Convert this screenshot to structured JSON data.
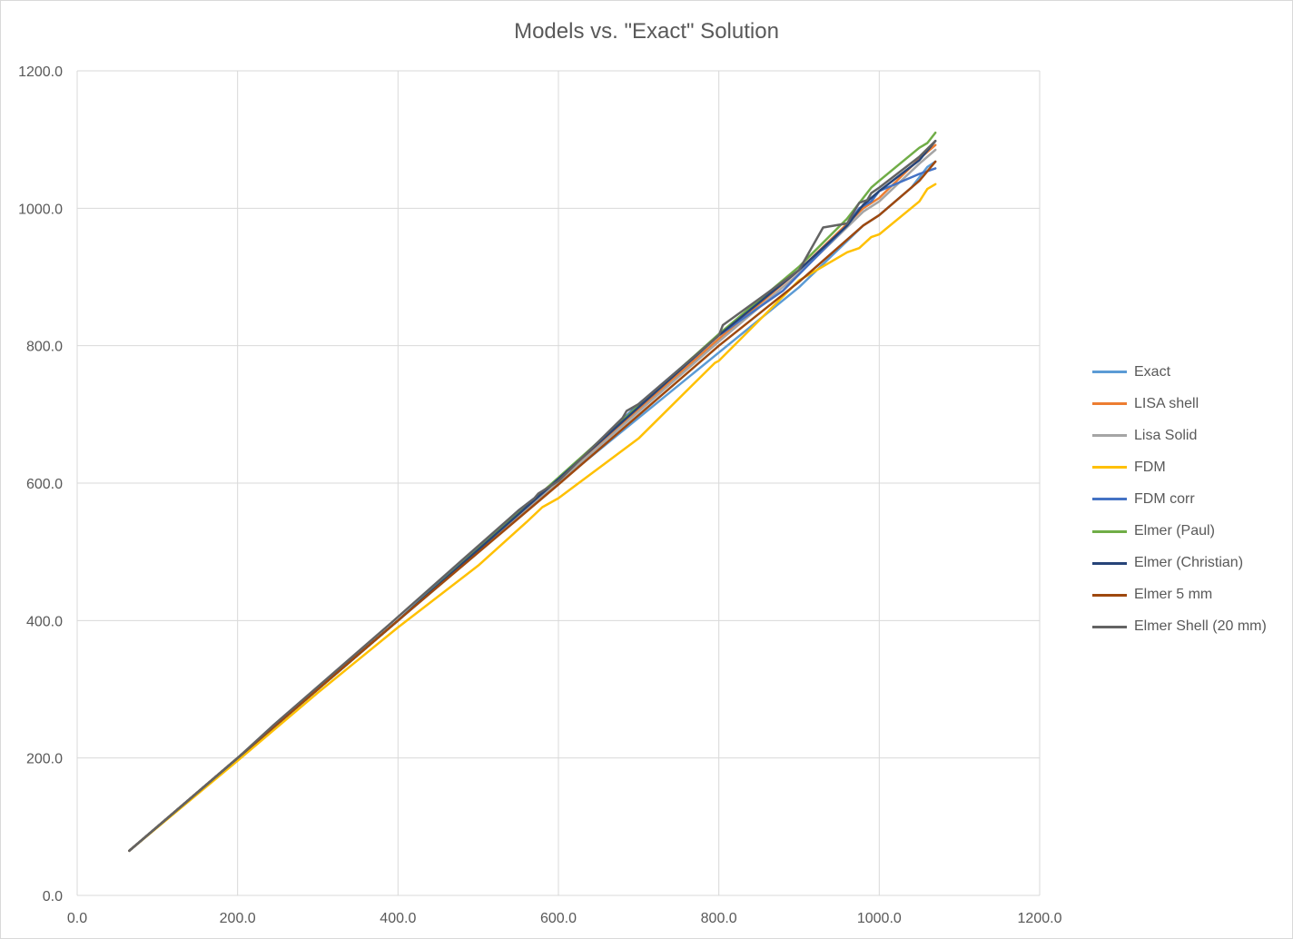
{
  "chart_data": {
    "type": "line",
    "title": "Models vs. \"Exact\" Solution",
    "xlabel": "",
    "ylabel": "",
    "xlim": [
      0,
      1200
    ],
    "ylim": [
      0,
      1200
    ],
    "x_ticks": [
      "0.0",
      "200.0",
      "400.0",
      "600.0",
      "800.0",
      "1000.0",
      "1200.0"
    ],
    "y_ticks": [
      "0.0",
      "200.0",
      "400.0",
      "600.0",
      "800.0",
      "1000.0",
      "1200.0"
    ],
    "grid": true,
    "legend_position": "right",
    "series": [
      {
        "name": "Exact",
        "color": "#5B9BD5",
        "points": [
          [
            65,
            65
          ],
          [
            200,
            200
          ],
          [
            400,
            400
          ],
          [
            600,
            600
          ],
          [
            800,
            790
          ],
          [
            900,
            885
          ],
          [
            980,
            975
          ],
          [
            1000,
            990
          ],
          [
            1040,
            1030
          ],
          [
            1060,
            1060
          ],
          [
            1070,
            1068
          ]
        ]
      },
      {
        "name": "LISA shell",
        "color": "#ED7D31",
        "points": [
          [
            65,
            65
          ],
          [
            200,
            200
          ],
          [
            400,
            400
          ],
          [
            600,
            605
          ],
          [
            800,
            810
          ],
          [
            900,
            910
          ],
          [
            980,
            1000
          ],
          [
            1000,
            1015
          ],
          [
            1050,
            1072
          ],
          [
            1070,
            1092
          ]
        ]
      },
      {
        "name": "Lisa Solid",
        "color": "#A5A5A5",
        "points": [
          [
            65,
            65
          ],
          [
            200,
            200
          ],
          [
            400,
            400
          ],
          [
            600,
            602
          ],
          [
            800,
            806
          ],
          [
            900,
            905
          ],
          [
            980,
            995
          ],
          [
            1000,
            1010
          ],
          [
            1050,
            1065
          ],
          [
            1070,
            1085
          ]
        ]
      },
      {
        "name": "FDM",
        "color": "#FFC000",
        "points": [
          [
            65,
            65
          ],
          [
            200,
            196
          ],
          [
            300,
            295
          ],
          [
            400,
            390
          ],
          [
            500,
            480
          ],
          [
            560,
            543
          ],
          [
            580,
            565
          ],
          [
            600,
            578
          ],
          [
            700,
            665
          ],
          [
            795,
            775
          ],
          [
            800,
            778
          ],
          [
            900,
            895
          ],
          [
            960,
            936
          ],
          [
            975,
            942
          ],
          [
            990,
            958
          ],
          [
            1000,
            962
          ],
          [
            1050,
            1010
          ],
          [
            1060,
            1028
          ],
          [
            1070,
            1035
          ]
        ]
      },
      {
        "name": "FDM corr",
        "color": "#4472C4",
        "points": [
          [
            65,
            65
          ],
          [
            200,
            200
          ],
          [
            400,
            400
          ],
          [
            550,
            560
          ],
          [
            600,
            605
          ],
          [
            700,
            715
          ],
          [
            800,
            815
          ],
          [
            880,
            880
          ],
          [
            960,
            975
          ],
          [
            975,
            1000
          ],
          [
            990,
            1010
          ],
          [
            1000,
            1025
          ],
          [
            1050,
            1050
          ],
          [
            1070,
            1058
          ]
        ]
      },
      {
        "name": "Elmer (Paul)",
        "color": "#70AD47",
        "points": [
          [
            65,
            65
          ],
          [
            200,
            200
          ],
          [
            400,
            400
          ],
          [
            600,
            608
          ],
          [
            800,
            817
          ],
          [
            900,
            915
          ],
          [
            960,
            985
          ],
          [
            990,
            1030
          ],
          [
            1000,
            1040
          ],
          [
            1050,
            1088
          ],
          [
            1060,
            1095
          ],
          [
            1070,
            1110
          ]
        ]
      },
      {
        "name": "Elmer (Christian)",
        "color": "#264478",
        "points": [
          [
            65,
            65
          ],
          [
            200,
            200
          ],
          [
            400,
            400
          ],
          [
            600,
            606
          ],
          [
            800,
            815
          ],
          [
            900,
            910
          ],
          [
            960,
            975
          ],
          [
            980,
            1005
          ],
          [
            1000,
            1025
          ],
          [
            1050,
            1070
          ],
          [
            1070,
            1098
          ]
        ]
      },
      {
        "name": "Elmer 5 mm",
        "color": "#9E480E",
        "points": [
          [
            65,
            65
          ],
          [
            200,
            200
          ],
          [
            400,
            400
          ],
          [
            600,
            598
          ],
          [
            800,
            800
          ],
          [
            900,
            893
          ],
          [
            980,
            975
          ],
          [
            1000,
            990
          ],
          [
            1050,
            1040
          ],
          [
            1070,
            1068
          ]
        ]
      },
      {
        "name": "Elmer Shell (20 mm)",
        "color": "#636363",
        "points": [
          [
            65,
            65
          ],
          [
            200,
            200
          ],
          [
            245,
            248
          ],
          [
            390,
            395
          ],
          [
            480,
            488
          ],
          [
            550,
            560
          ],
          [
            570,
            578
          ],
          [
            575,
            585
          ],
          [
            600,
            603
          ],
          [
            680,
            695
          ],
          [
            685,
            705
          ],
          [
            700,
            715
          ],
          [
            800,
            815
          ],
          [
            805,
            830
          ],
          [
            900,
            910
          ],
          [
            930,
            972
          ],
          [
            960,
            978
          ],
          [
            975,
            1008
          ],
          [
            985,
            1012
          ],
          [
            990,
            1022
          ],
          [
            1000,
            1030
          ],
          [
            1050,
            1075
          ],
          [
            1070,
            1098
          ]
        ]
      }
    ]
  }
}
